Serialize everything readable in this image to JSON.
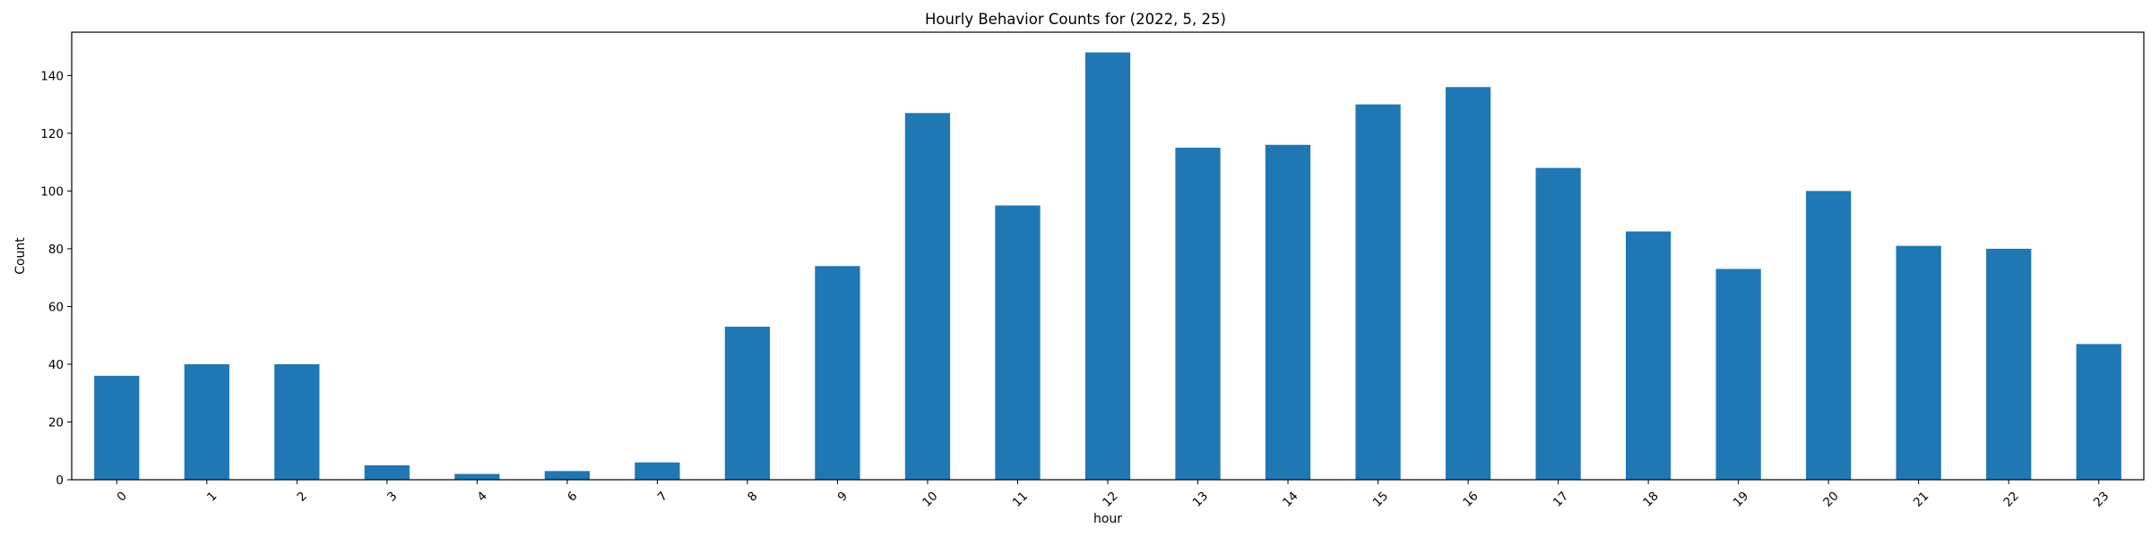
{
  "chart_data": {
    "type": "bar",
    "title": "Hourly Behavior Counts for (2022, 5, 25)",
    "xlabel": "hour",
    "ylabel": "Count",
    "categories": [
      "0",
      "1",
      "2",
      "3",
      "4",
      "6",
      "7",
      "8",
      "9",
      "10",
      "11",
      "12",
      "13",
      "14",
      "15",
      "16",
      "17",
      "18",
      "19",
      "20",
      "21",
      "22",
      "23"
    ],
    "values": [
      36,
      40,
      40,
      5,
      2,
      3,
      6,
      53,
      74,
      127,
      95,
      148,
      115,
      116,
      130,
      136,
      108,
      86,
      73,
      100,
      81,
      80,
      47
    ],
    "ylim": [
      0,
      155
    ],
    "yticks": [
      0,
      20,
      40,
      60,
      80,
      100,
      120,
      140
    ],
    "xtick_rotation_deg": 45,
    "bar_color": "#1f77b4",
    "grid": false,
    "legend": "none"
  }
}
